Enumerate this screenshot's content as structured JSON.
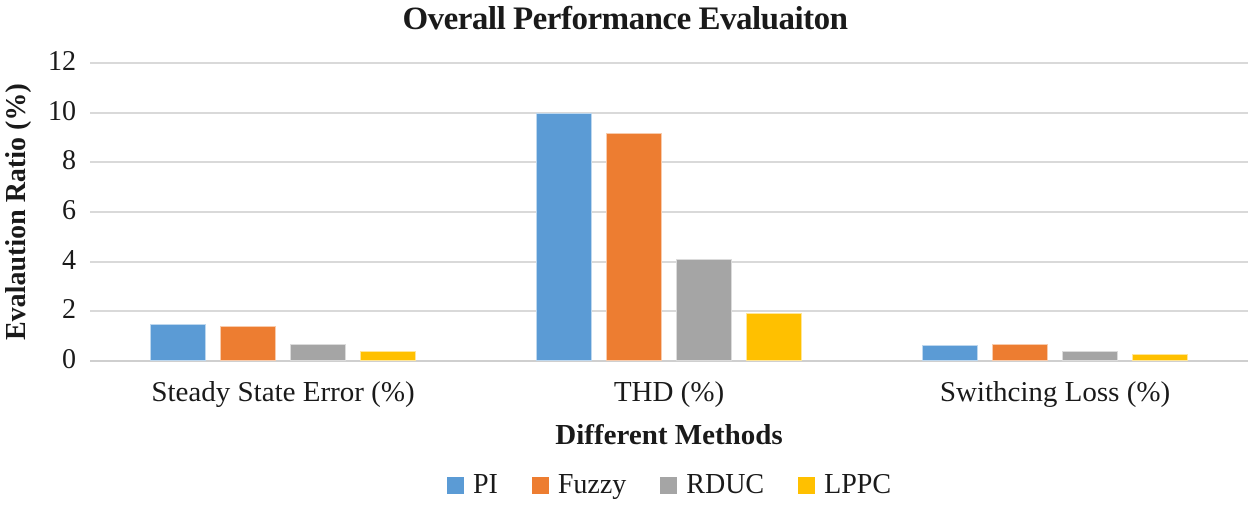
{
  "chart_data": {
    "type": "bar",
    "title": "Overall Performance Evaluaiton",
    "xlabel": "Different Methods",
    "ylabel": "Evalaution Ratio (%)",
    "categories": [
      "Steady State Error (%)",
      "THD (%)",
      "Swithcing Loss (%)"
    ],
    "series": [
      {
        "name": "PI",
        "color": "#5B9BD5",
        "values": [
          1.5,
          10.0,
          0.65
        ]
      },
      {
        "name": "Fuzzy",
        "color": "#ED7D31",
        "values": [
          1.4,
          9.2,
          0.7
        ]
      },
      {
        "name": "RDUC",
        "color": "#A5A5A5",
        "values": [
          0.7,
          4.1,
          0.4
        ]
      },
      {
        "name": "LPPC",
        "color": "#FFC000",
        "values": [
          0.4,
          1.95,
          0.27
        ]
      }
    ],
    "ylim": [
      0,
      12
    ],
    "yticks": [
      0,
      2,
      4,
      6,
      8,
      10,
      12
    ],
    "grid": "horizontal",
    "gridline_color": "#D9D9D9",
    "baseline_color": "#CFCFCF",
    "text_color": "#1A1A1A",
    "legend_position": "bottom"
  }
}
